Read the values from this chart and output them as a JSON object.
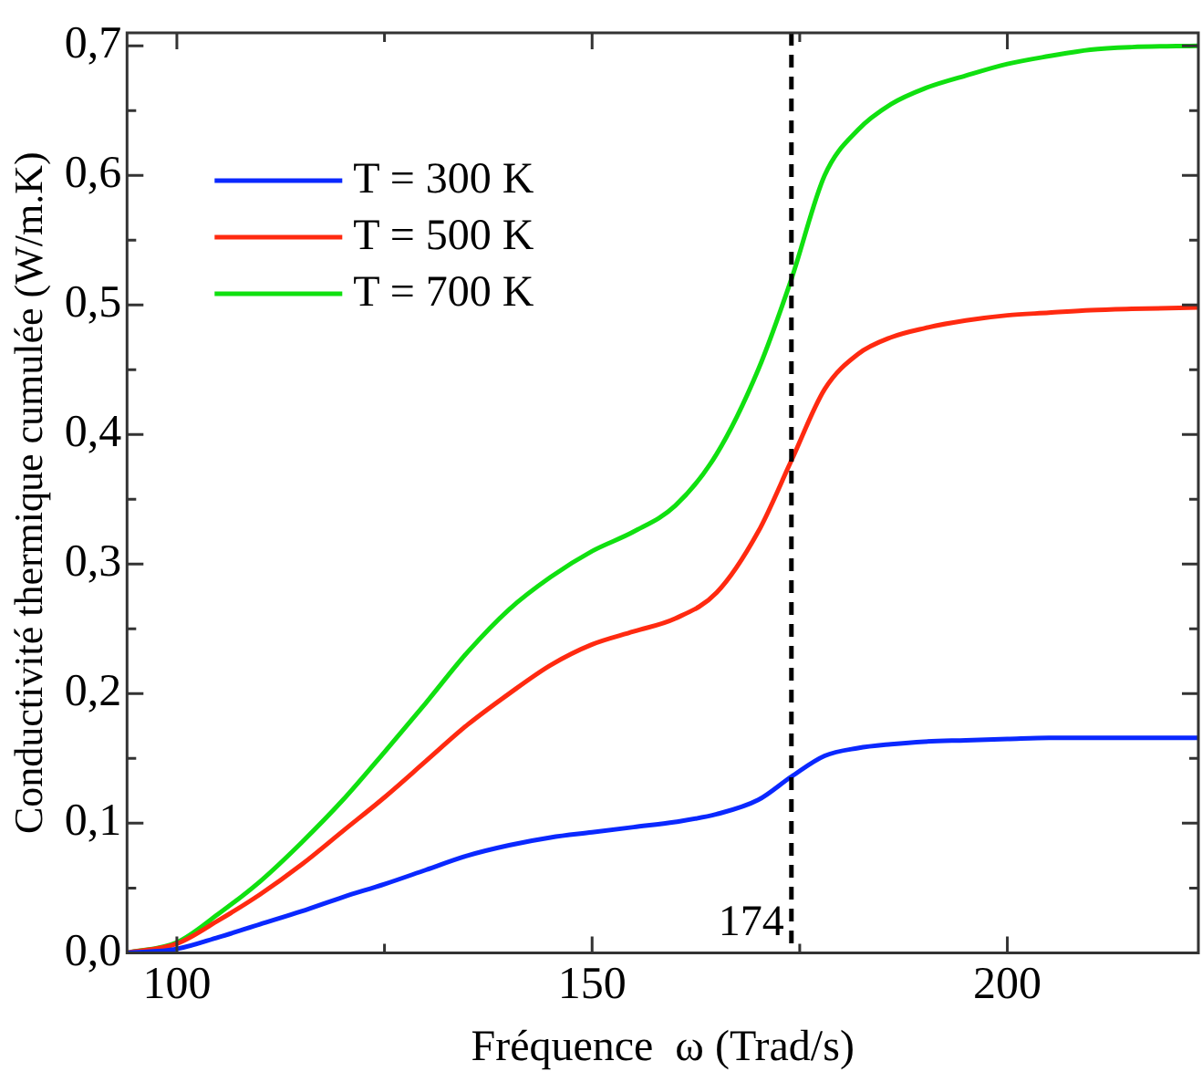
{
  "chart_data": {
    "type": "line",
    "xlabel": "Fréquence  ω (Trad/s)",
    "ylabel": "Conductivité thermique cumulée (W/m.K)",
    "x": [
      94,
      100,
      105,
      110,
      115,
      120,
      125,
      130,
      135,
      140,
      145,
      150,
      155,
      160,
      165,
      170,
      174,
      178,
      182,
      186,
      190,
      195,
      200,
      205,
      210,
      215,
      223
    ],
    "series": [
      {
        "name": "T = 300 K",
        "color": "#0a28ff",
        "values": [
          0,
          0.003,
          0.012,
          0.022,
          0.032,
          0.043,
          0.053,
          0.064,
          0.075,
          0.083,
          0.089,
          0.093,
          0.097,
          0.101,
          0.107,
          0.118,
          0.136,
          0.152,
          0.158,
          0.161,
          0.163,
          0.164,
          0.165,
          0.166,
          0.166,
          0.166,
          0.166
        ]
      },
      {
        "name": "T = 500 K",
        "color": "#ff2a10",
        "values": [
          0,
          0.007,
          0.025,
          0.045,
          0.068,
          0.094,
          0.12,
          0.148,
          0.176,
          0.2,
          0.222,
          0.238,
          0.248,
          0.258,
          0.278,
          0.325,
          0.38,
          0.435,
          0.462,
          0.475,
          0.482,
          0.488,
          0.492,
          0.494,
          0.496,
          0.497,
          0.498
        ]
      },
      {
        "name": "T = 700 K",
        "color": "#10e010",
        "values": [
          0,
          0.008,
          0.03,
          0.055,
          0.085,
          0.118,
          0.155,
          0.193,
          0.232,
          0.265,
          0.29,
          0.31,
          0.325,
          0.345,
          0.385,
          0.45,
          0.52,
          0.6,
          0.635,
          0.655,
          0.667,
          0.677,
          0.686,
          0.692,
          0.697,
          0.699,
          0.7
        ]
      }
    ],
    "xlim": [
      94,
      223
    ],
    "xticks": [
      100,
      {
        "value": 125,
        "label": null
      },
      150,
      {
        "value": 175,
        "label": null
      },
      200
    ],
    "ylim": [
      0,
      0.71
    ],
    "yticks": [
      {
        "value": 0,
        "label": "0,0"
      },
      {
        "value": 0.05,
        "label": null
      },
      {
        "value": 0.1,
        "label": "0,1"
      },
      {
        "value": 0.15,
        "label": null
      },
      {
        "value": 0.2,
        "label": "0,2"
      },
      {
        "value": 0.25,
        "label": null
      },
      {
        "value": 0.3,
        "label": "0,3"
      },
      {
        "value": 0.35,
        "label": null
      },
      {
        "value": 0.4,
        "label": "0,4"
      },
      {
        "value": 0.45,
        "label": null
      },
      {
        "value": 0.5,
        "label": "0,5"
      },
      {
        "value": 0.55,
        "label": null
      },
      {
        "value": 0.6,
        "label": "0,6"
      },
      {
        "value": 0.65,
        "label": null
      },
      {
        "value": 0.7,
        "label": "0,7"
      }
    ],
    "ref_lines": [
      {
        "axis": "x",
        "value": 174,
        "label": "174",
        "color": "#000000",
        "line_style": "dashed"
      }
    ],
    "grid": false,
    "legend": "top left",
    "marker": "none",
    "line_style": "solid"
  }
}
